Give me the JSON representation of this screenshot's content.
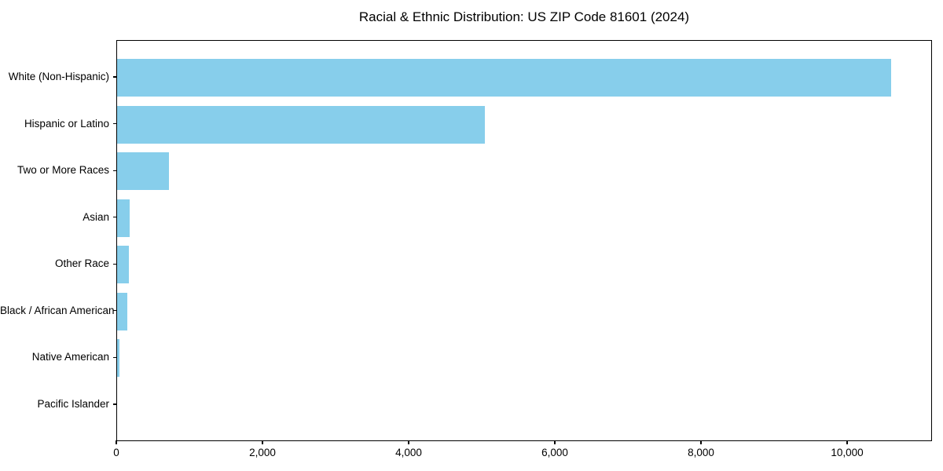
{
  "title": "Racial & Ethnic Distribution: US ZIP Code 81601 (2024)",
  "chart_data": {
    "type": "bar",
    "orientation": "horizontal",
    "title": "Racial & Ethnic Distribution: US ZIP Code 81601 (2024)",
    "xlabel": "",
    "ylabel": "",
    "categories": [
      "White (Non-Hispanic)",
      "Hispanic or Latino",
      "Two or More Races",
      "Asian",
      "Other Race",
      "Black / African American",
      "Native American",
      "Pacific Islander"
    ],
    "values": [
      10613,
      5043,
      712,
      175,
      160,
      138,
      35,
      0
    ],
    "xlim": [
      0,
      11161
    ],
    "xticks": [
      0,
      2000,
      4000,
      6000,
      8000,
      10000
    ],
    "xtick_labels": [
      "0",
      "2,000",
      "4,000",
      "6,000",
      "8,000",
      "10,000"
    ],
    "bar_color": "#87CEEB",
    "axis_color": "#000000",
    "grid": false,
    "legend": null
  }
}
